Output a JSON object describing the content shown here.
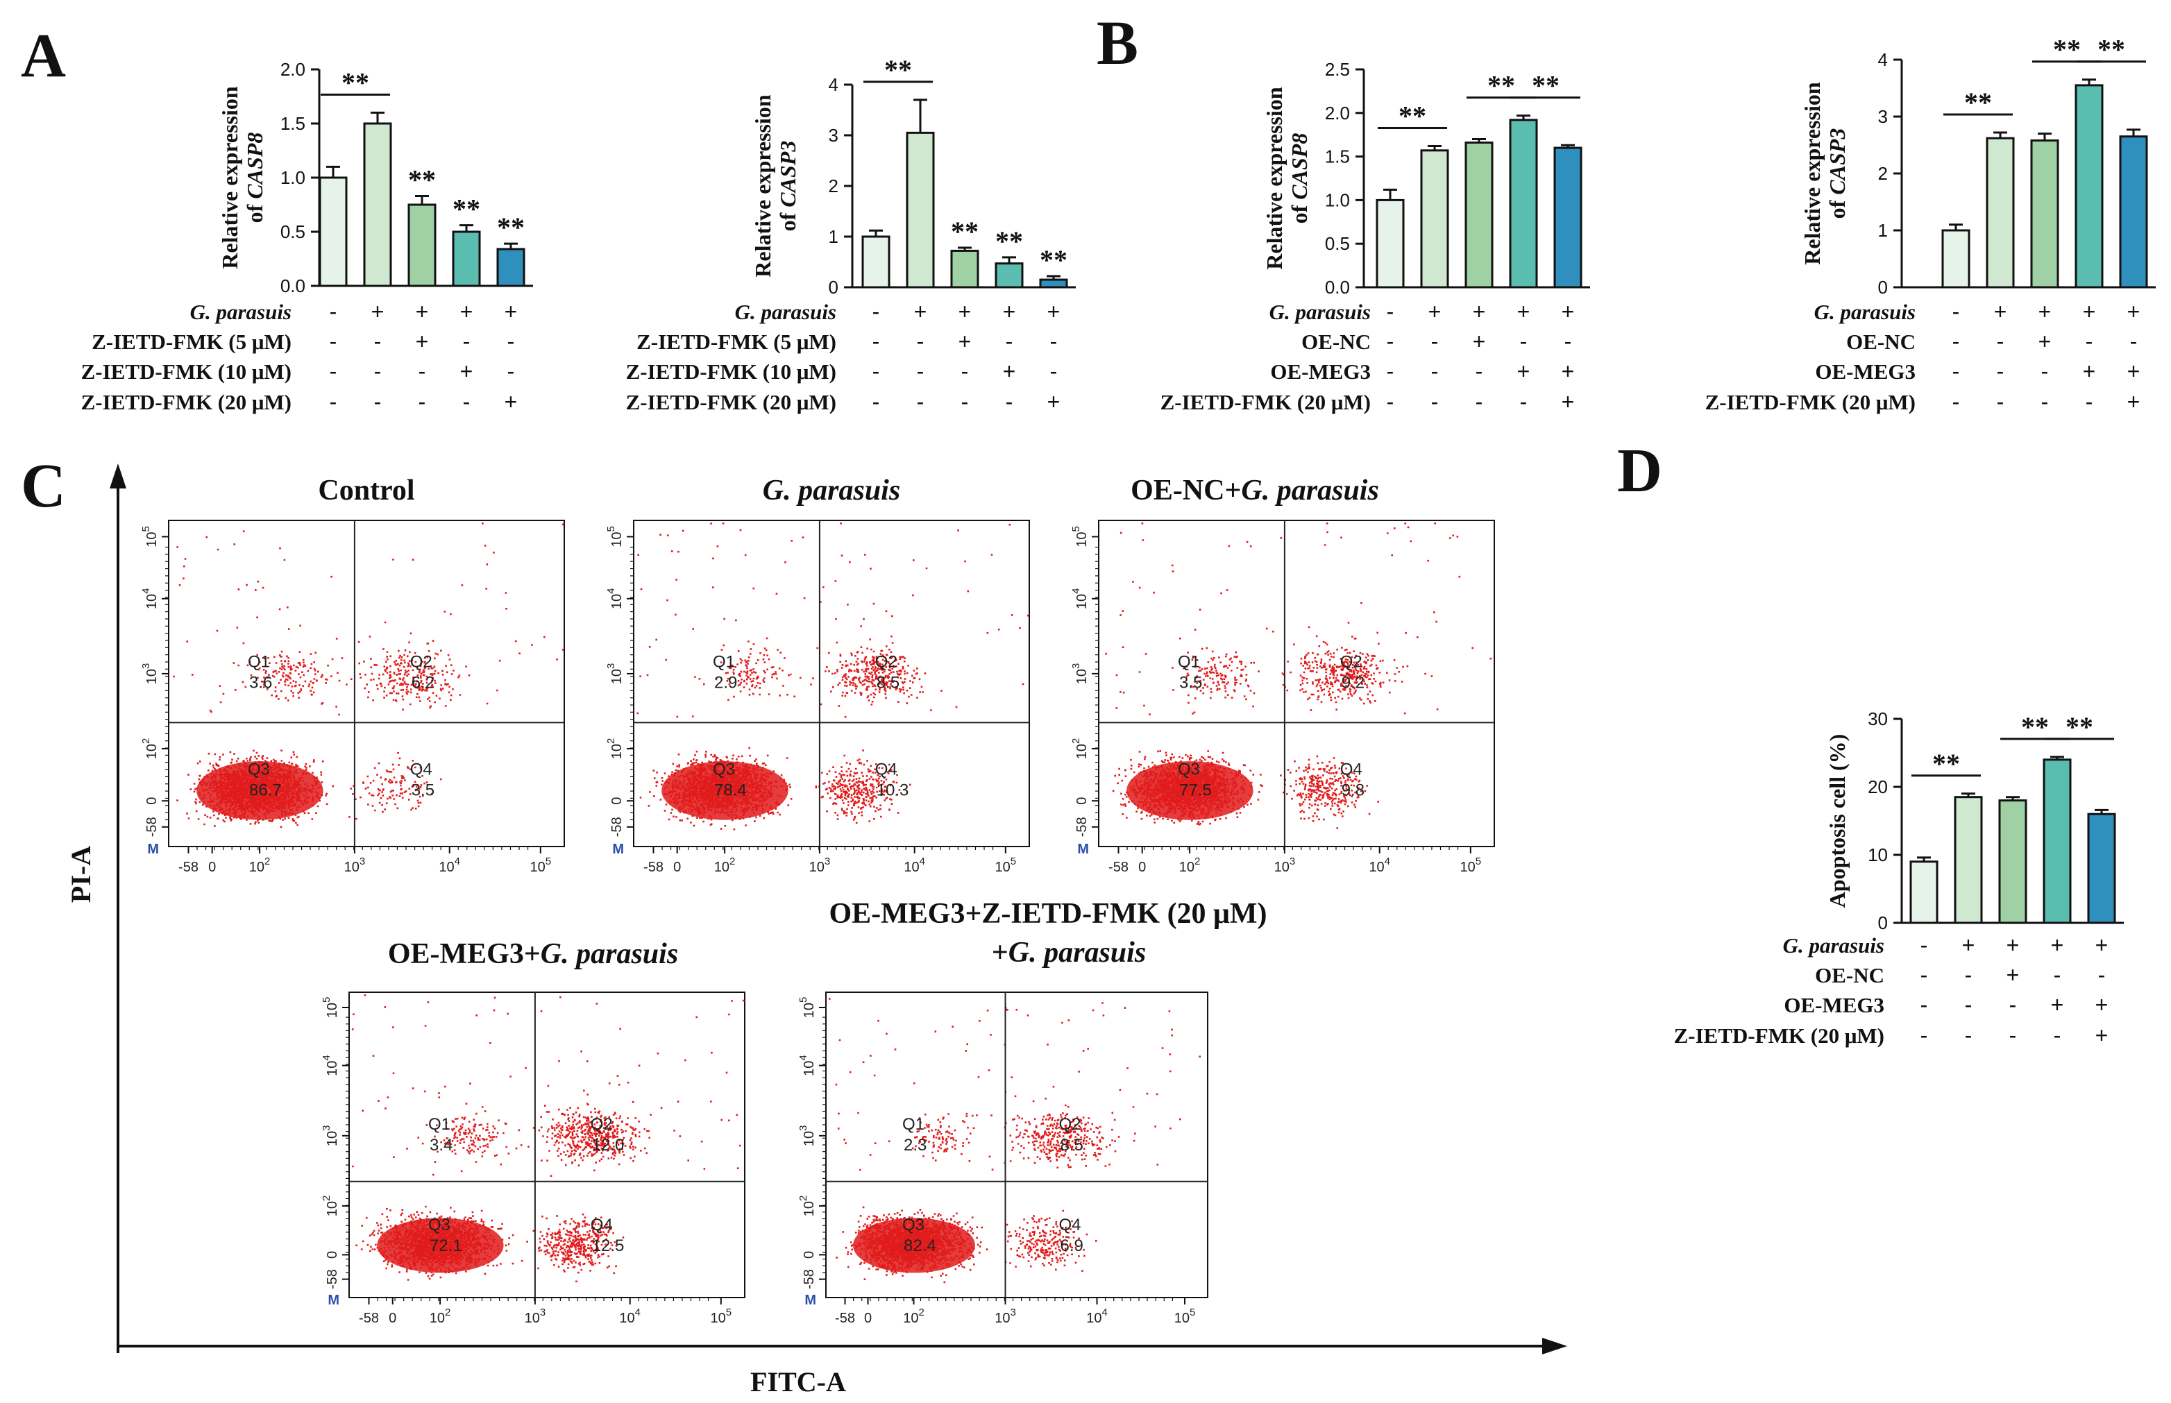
{
  "figure": {
    "colors": [
      "#e6f3ea",
      "#cfe8cf",
      "#9fd1a5",
      "#5bbcb0",
      "#2f8fbd"
    ],
    "scatter_color": "#e11b1b"
  },
  "chart_data": [
    {
      "id": "A1",
      "panel_letter": "A",
      "type": "bar",
      "ylabel": "Relative expression",
      "ylabel2_prefix": "of ",
      "ylabel2_gene": "CASP8",
      "ylim": [
        0,
        2.0
      ],
      "yticks": [
        "0.0",
        "0.5",
        "1.0",
        "1.5",
        "2.0"
      ],
      "ytick_values": [
        0,
        0.5,
        1.0,
        1.5,
        2.0
      ],
      "values": [
        1.0,
        1.5,
        0.75,
        0.5,
        0.34
      ],
      "errors": [
        0.1,
        0.1,
        0.08,
        0.06,
        0.05
      ],
      "bar_colors": [
        0,
        1,
        2,
        3,
        4
      ],
      "sig_bar": {
        "from": 0,
        "to": 1,
        "label": "**"
      },
      "bar_stars": [
        {
          "i": 2,
          "label": "**"
        },
        {
          "i": 3,
          "label": "**"
        },
        {
          "i": 4,
          "label": "**"
        }
      ],
      "treatments": [
        {
          "name": "G. parasuis",
          "italic": true,
          "signs": [
            "-",
            "+",
            "+",
            "+",
            "+"
          ]
        },
        {
          "name": "Z-IETD-FMK (5 μM)",
          "italic": false,
          "signs": [
            "-",
            "-",
            "+",
            "-",
            "-"
          ]
        },
        {
          "name": "Z-IETD-FMK (10 μM)",
          "italic": false,
          "signs": [
            "-",
            "-",
            "-",
            "+",
            "-"
          ]
        },
        {
          "name": "Z-IETD-FMK (20 μM)",
          "italic": false,
          "signs": [
            "-",
            "-",
            "-",
            "-",
            "+"
          ]
        }
      ]
    },
    {
      "id": "A2",
      "panel_letter": "",
      "type": "bar",
      "ylabel": "Relative expression",
      "ylabel2_prefix": "of ",
      "ylabel2_gene": "CASP3",
      "ylim": [
        0,
        4
      ],
      "yticks": [
        "0",
        "1",
        "2",
        "3",
        "4"
      ],
      "ytick_values": [
        0,
        1,
        2,
        3,
        4
      ],
      "values": [
        1.0,
        3.05,
        0.72,
        0.47,
        0.15
      ],
      "errors": [
        0.12,
        0.65,
        0.06,
        0.12,
        0.07
      ],
      "bar_colors": [
        0,
        1,
        2,
        3,
        4
      ],
      "sig_bar": {
        "from": 0,
        "to": 1,
        "label": "**"
      },
      "bar_stars": [
        {
          "i": 2,
          "label": "**"
        },
        {
          "i": 3,
          "label": "**"
        },
        {
          "i": 4,
          "label": "**"
        }
      ],
      "treatments": [
        {
          "name": "G. parasuis",
          "italic": true,
          "signs": [
            "-",
            "+",
            "+",
            "+",
            "+"
          ]
        },
        {
          "name": "Z-IETD-FMK (5 μM)",
          "italic": false,
          "signs": [
            "-",
            "-",
            "+",
            "-",
            "-"
          ]
        },
        {
          "name": "Z-IETD-FMK (10 μM)",
          "italic": false,
          "signs": [
            "-",
            "-",
            "-",
            "+",
            "-"
          ]
        },
        {
          "name": "Z-IETD-FMK (20 μM)",
          "italic": false,
          "signs": [
            "-",
            "-",
            "-",
            "-",
            "+"
          ]
        }
      ]
    },
    {
      "id": "B1",
      "panel_letter": "B",
      "type": "bar",
      "ylabel": "Relative expression",
      "ylabel2_prefix": "of ",
      "ylabel2_gene": "CASP8",
      "ylim": [
        0,
        2.5
      ],
      "yticks": [
        "0.0",
        "0.5",
        "1.0",
        "1.5",
        "2.0",
        "2.5"
      ],
      "ytick_values": [
        0,
        0.5,
        1.0,
        1.5,
        2.0,
        2.5
      ],
      "values": [
        1.0,
        1.57,
        1.66,
        1.92,
        1.6
      ],
      "errors": [
        0.12,
        0.05,
        0.04,
        0.05,
        0.03
      ],
      "bar_colors": [
        0,
        1,
        2,
        3,
        4
      ],
      "sig_bars": [
        {
          "from": 0,
          "to": 1,
          "label": "**"
        },
        {
          "from": 2,
          "to": 3,
          "label": "**"
        },
        {
          "from": 3,
          "to": 4,
          "label": "**"
        }
      ],
      "bar_stars": [],
      "treatments": [
        {
          "name": "G. parasuis",
          "italic": true,
          "signs": [
            "-",
            "+",
            "+",
            "+",
            "+"
          ]
        },
        {
          "name": "OE-NC",
          "italic": false,
          "signs": [
            "-",
            "-",
            "+",
            "-",
            "-"
          ]
        },
        {
          "name": "OE-MEG3",
          "italic": false,
          "signs": [
            "-",
            "-",
            "-",
            "+",
            "+"
          ]
        },
        {
          "name": "Z-IETD-FMK (20 μM)",
          "italic": false,
          "signs": [
            "-",
            "-",
            "-",
            "-",
            "+"
          ]
        }
      ]
    },
    {
      "id": "B2",
      "panel_letter": "",
      "type": "bar",
      "ylabel": "Relative expression",
      "ylabel2_prefix": "of ",
      "ylabel2_gene": "CASP3",
      "ylim": [
        0,
        4
      ],
      "yticks": [
        "0",
        "1",
        "2",
        "3",
        "4"
      ],
      "ytick_values": [
        0,
        1,
        2,
        3,
        4
      ],
      "values": [
        1.0,
        2.62,
        2.58,
        3.55,
        2.65
      ],
      "errors": [
        0.1,
        0.1,
        0.12,
        0.1,
        0.12
      ],
      "bar_colors": [
        0,
        1,
        2,
        3,
        4
      ],
      "sig_bars": [
        {
          "from": 0,
          "to": 1,
          "label": "**"
        },
        {
          "from": 2,
          "to": 3,
          "label": "**"
        },
        {
          "from": 3,
          "to": 4,
          "label": "**"
        }
      ],
      "bar_stars": [],
      "treatments": [
        {
          "name": "G. parasuis",
          "italic": true,
          "signs": [
            "-",
            "+",
            "+",
            "+",
            "+"
          ]
        },
        {
          "name": "OE-NC",
          "italic": false,
          "signs": [
            "-",
            "-",
            "+",
            "-",
            "-"
          ]
        },
        {
          "name": "OE-MEG3",
          "italic": false,
          "signs": [
            "-",
            "-",
            "-",
            "+",
            "+"
          ]
        },
        {
          "name": "Z-IETD-FMK (20 μM)",
          "italic": false,
          "signs": [
            "-",
            "-",
            "-",
            "-",
            "+"
          ]
        }
      ]
    },
    {
      "id": "D",
      "panel_letter": "D",
      "type": "bar",
      "ylabel": "Apoptosis cell (%)",
      "ylabel2_prefix": "",
      "ylabel2_gene": "",
      "ylim": [
        0,
        30
      ],
      "yticks": [
        "0",
        "10",
        "20",
        "30"
      ],
      "ytick_values": [
        0,
        10,
        20,
        30
      ],
      "values": [
        9.0,
        18.5,
        18.0,
        24.0,
        16.0
      ],
      "errors": [
        0.6,
        0.5,
        0.5,
        0.4,
        0.6
      ],
      "bar_colors": [
        0,
        1,
        2,
        3,
        4
      ],
      "sig_bars": [
        {
          "from": 0,
          "to": 1,
          "label": "**"
        },
        {
          "from": 2,
          "to": 3,
          "label": "**"
        },
        {
          "from": 3,
          "to": 4,
          "label": "**"
        }
      ],
      "bar_stars": [],
      "treatments": [
        {
          "name": "G. parasuis",
          "italic": true,
          "signs": [
            "-",
            "+",
            "+",
            "+",
            "+"
          ]
        },
        {
          "name": "OE-NC",
          "italic": false,
          "signs": [
            "-",
            "-",
            "+",
            "-",
            "-"
          ]
        },
        {
          "name": "OE-MEG3",
          "italic": false,
          "signs": [
            "-",
            "-",
            "-",
            "+",
            "+"
          ]
        },
        {
          "name": "Z-IETD-FMK (20 μM)",
          "italic": false,
          "signs": [
            "-",
            "-",
            "-",
            "-",
            "+"
          ]
        }
      ]
    },
    {
      "id": "C",
      "panel_letter": "C",
      "type": "scatter",
      "xlabel": "FITC-A",
      "ylabel": "PI-A",
      "axis_ticks": [
        "-58",
        "0",
        "10",
        "10",
        "10",
        "10"
      ],
      "tick_exponents": [
        "",
        "",
        "2",
        "3",
        "4",
        "5"
      ],
      "gate_marker": "M",
      "plots": [
        {
          "title_plain": "Control",
          "title_italic": "",
          "title_line2_plain": "",
          "title_line2_italic": "",
          "quadrants": {
            "Q1": "3.6",
            "Q2": "6.2",
            "Q3": "86.7",
            "Q4": "3.5"
          }
        },
        {
          "title_plain": "",
          "title_italic": "G. parasuis",
          "title_line2_plain": "",
          "title_line2_italic": "",
          "quadrants": {
            "Q1": "2.9",
            "Q2": "8.5",
            "Q3": "78.4",
            "Q4": "10.3"
          }
        },
        {
          "title_plain": "OE-NC+",
          "title_italic": "G. parasuis",
          "title_line2_plain": "",
          "title_line2_italic": "",
          "quadrants": {
            "Q1": "3.5",
            "Q2": "9.2",
            "Q3": "77.5",
            "Q4": "9.8"
          }
        },
        {
          "title_plain": "OE-MEG3+",
          "title_italic": "G. parasuis",
          "title_line2_plain": "",
          "title_line2_italic": "",
          "quadrants": {
            "Q1": "3.4",
            "Q2": "12.0",
            "Q3": "72.1",
            "Q4": "12.5"
          }
        },
        {
          "title_plain": "OE-MEG3+Z-IETD-FMK (20 μM)",
          "title_italic": "",
          "title_line2_plain": "+",
          "title_line2_italic": "G. parasuis",
          "quadrants": {
            "Q1": "2.3",
            "Q2": "8.5",
            "Q3": "82.4",
            "Q4": "6.9"
          }
        }
      ]
    }
  ]
}
